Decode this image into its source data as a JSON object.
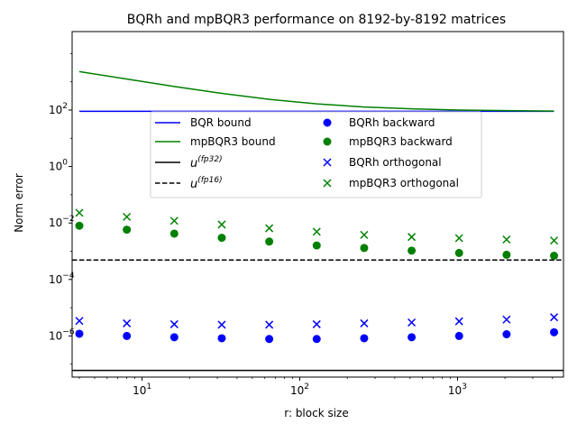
{
  "chart_data": {
    "type": "line",
    "title": "BQRh and mpBQR3 performance on 8192-by-8192 matrices",
    "xlabel": "r: block size",
    "ylabel": "Norm error",
    "xscale": "log",
    "yscale": "log",
    "xlim": [
      3.6,
      4700
    ],
    "ylim": [
      3.5e-08,
      60000
    ],
    "x_ticks": [
      {
        "value": 10,
        "base": "10",
        "exp": "1"
      },
      {
        "value": 100,
        "base": "10",
        "exp": "2"
      },
      {
        "value": 1000,
        "base": "10",
        "exp": "3"
      }
    ],
    "y_ticks": [
      {
        "value": 1e-06,
        "base": "10",
        "exp": "−6"
      },
      {
        "value": 0.0001,
        "base": "10",
        "exp": "−4"
      },
      {
        "value": 0.01,
        "base": "10",
        "exp": "−2"
      },
      {
        "value": 1,
        "base": "10",
        "exp": "0"
      },
      {
        "value": 100,
        "base": "10",
        "exp": "2"
      }
    ],
    "x": [
      4,
      8,
      16,
      32,
      64,
      128,
      256,
      512,
      1024,
      2048,
      4096
    ],
    "lines": [
      {
        "name": "BQR bound",
        "color": "#0000ff",
        "dash": "solid",
        "x": [
          4,
          4096
        ],
        "values": [
          90,
          90
        ]
      },
      {
        "name": "mpBQR3 bound",
        "color": "#008000",
        "dash": "solid",
        "x": [
          4,
          8,
          16,
          32,
          64,
          128,
          256,
          512,
          1024,
          2048,
          4096
        ],
        "values": [
          2300,
          1250,
          680,
          390,
          240,
          165,
          128,
          110,
          100,
          95,
          92
        ]
      },
      {
        "name": "u^(fp32)",
        "label_base": "u",
        "label_sup": "(fp32)",
        "color": "#000000",
        "dash": "solid",
        "hline": 6e-08
      },
      {
        "name": "u^(fp16)",
        "label_base": "u",
        "label_sup": "(fp16)",
        "color": "#000000",
        "dash": "dashed",
        "hline": 0.00049
      }
    ],
    "series": [
      {
        "name": "BQRh backward",
        "marker": "circle",
        "color": "#0000ff",
        "values": [
          1.2e-06,
          1e-06,
          9e-07,
          8.3e-07,
          7.8e-07,
          7.8e-07,
          8.3e-07,
          9e-07,
          1e-06,
          1.15e-06,
          1.35e-06
        ]
      },
      {
        "name": "mpBQR3 backward",
        "marker": "circle",
        "color": "#008000",
        "values": [
          0.008,
          0.0058,
          0.0042,
          0.003,
          0.0022,
          0.0016,
          0.0013,
          0.00105,
          0.00087,
          0.00075,
          0.00069
        ]
      },
      {
        "name": "BQRh orthogonal",
        "marker": "x",
        "color": "#0000ff",
        "values": [
          3.4e-06,
          2.8e-06,
          2.6e-06,
          2.5e-06,
          2.5e-06,
          2.6e-06,
          2.8e-06,
          3e-06,
          3.3e-06,
          3.8e-06,
          4.6e-06
        ]
      },
      {
        "name": "mpBQR3 orthogonal",
        "marker": "x",
        "color": "#008000",
        "values": [
          0.023,
          0.0165,
          0.012,
          0.0088,
          0.0065,
          0.0049,
          0.0038,
          0.0032,
          0.0029,
          0.0026,
          0.0024
        ]
      }
    ],
    "legend": {
      "position": "center",
      "columns": [
        [
          "BQR bound",
          "mpBQR3 bound",
          "u^(fp32)",
          "u^(fp16)"
        ],
        [
          "BQRh backward",
          "mpBQR3 backward",
          "BQRh orthogonal",
          "mpBQR3 orthogonal"
        ]
      ]
    },
    "grid": false
  }
}
